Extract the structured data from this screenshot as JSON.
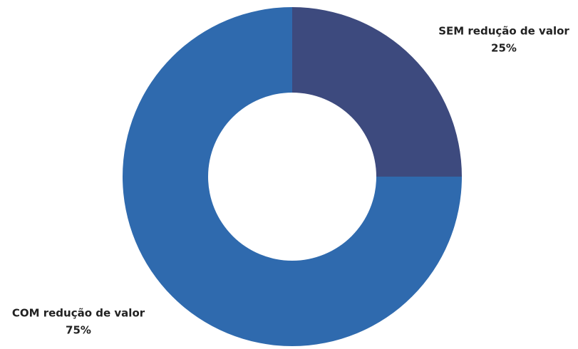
{
  "chart_data": {
    "type": "donut",
    "categories": [
      "SEM redução de valor",
      "COM redução de valor"
    ],
    "values": [
      25,
      75
    ],
    "value_labels": [
      "25%",
      "75%"
    ],
    "colors": [
      "#3d4a7e",
      "#2f6aae"
    ]
  }
}
